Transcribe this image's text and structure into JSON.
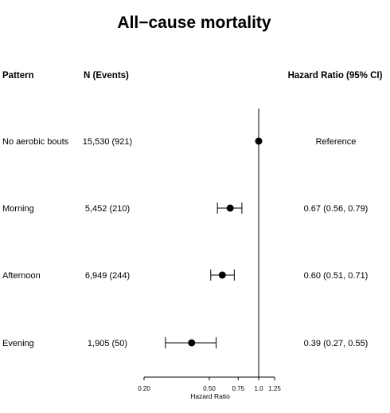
{
  "chart_data": {
    "type": "forest",
    "title": "All−cause mortality",
    "columns": {
      "pattern": "Pattern",
      "n_events": "N (Events)",
      "hazard_ratio": "Hazard Ratio (95% CI)"
    },
    "rows": [
      {
        "pattern": "No aerobic bouts",
        "n_events": "15,530 (921)",
        "hr_text": "Reference",
        "hr": 1.0,
        "lower": null,
        "upper": null
      },
      {
        "pattern": "Morning",
        "n_events": "5,452 (210)",
        "hr_text": "0.67 (0.56, 0.79)",
        "hr": 0.67,
        "lower": 0.56,
        "upper": 0.79
      },
      {
        "pattern": "Afternoon",
        "n_events": "6,949 (244)",
        "hr_text": "0.60 (0.51, 0.71)",
        "hr": 0.6,
        "lower": 0.51,
        "upper": 0.71
      },
      {
        "pattern": "Evening",
        "n_events": "1,905 (50)",
        "hr_text": "0.39 (0.27, 0.55)",
        "hr": 0.39,
        "lower": 0.27,
        "upper": 0.55
      }
    ],
    "xaxis": {
      "label": "Hazard Ratio",
      "scale": "log",
      "ticks": [
        0.2,
        0.5,
        0.75,
        1.0,
        1.25
      ],
      "tick_labels": [
        "0.20",
        "0.50",
        "0.75",
        "1.0",
        "1.25"
      ],
      "reference_line": 1.0
    }
  }
}
